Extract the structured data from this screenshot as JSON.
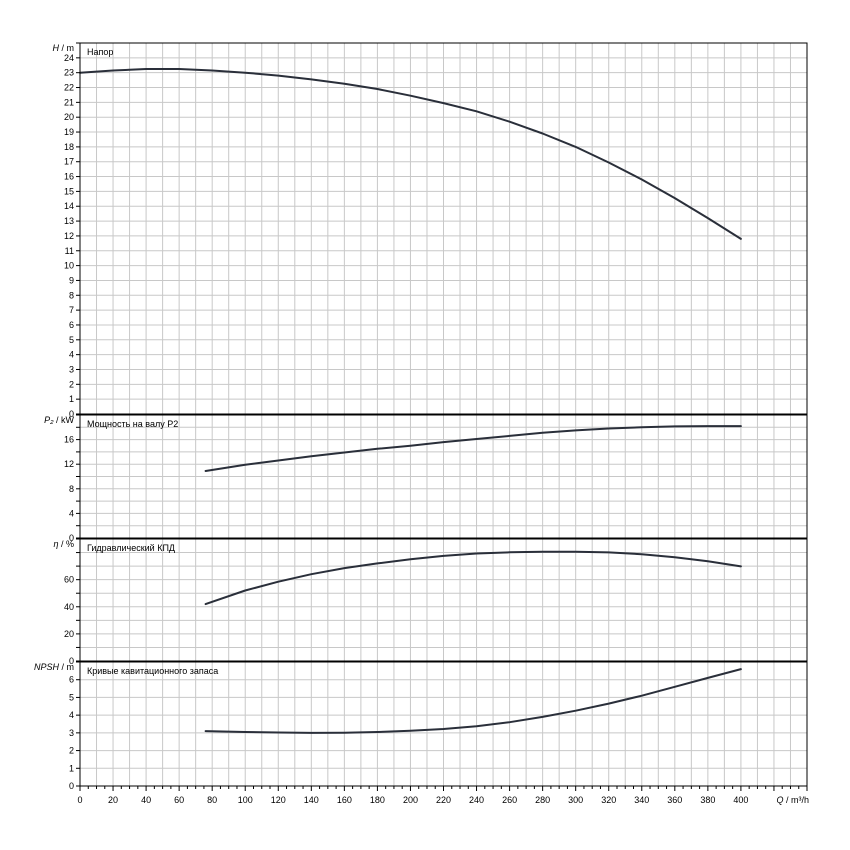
{
  "chart_data": {
    "type": "line",
    "x_axis": {
      "label": "Q / m³/h",
      "min": 0,
      "max": 440,
      "ticks": [
        0,
        20,
        40,
        60,
        80,
        100,
        120,
        140,
        160,
        180,
        200,
        220,
        240,
        260,
        280,
        300,
        320,
        340,
        360,
        380,
        400
      ]
    },
    "grid": true,
    "panels": [
      {
        "id": "head",
        "title": "Напор",
        "ylabel": "H / m",
        "ylim": [
          0,
          25
        ],
        "ticks": [
          0,
          1,
          2,
          3,
          4,
          5,
          6,
          7,
          8,
          9,
          10,
          11,
          12,
          13,
          14,
          15,
          16,
          17,
          18,
          19,
          20,
          21,
          22,
          23,
          24
        ],
        "gridlines": [
          0,
          1,
          2,
          3,
          4,
          5,
          6,
          7,
          8,
          9,
          10,
          11,
          12,
          13,
          14,
          15,
          16,
          17,
          18,
          19,
          20,
          21,
          22,
          23,
          24,
          25
        ],
        "series": [
          {
            "x": [
              0,
              20,
              40,
              60,
              80,
              100,
              120,
              140,
              160,
              180,
              200,
              220,
              240,
              260,
              280,
              300,
              320,
              340,
              360,
              380,
              400
            ],
            "y": [
              23.0,
              23.15,
              23.25,
              23.25,
              23.15,
              23.0,
              22.8,
              22.55,
              22.25,
              21.9,
              21.45,
              20.95,
              20.4,
              19.7,
              18.9,
              18.0,
              16.95,
              15.8,
              14.55,
              13.2,
              11.8
            ]
          }
        ]
      },
      {
        "id": "power",
        "title": "Мощность на валу P2",
        "ylabel": "P₂ / kW",
        "ylim": [
          0,
          20
        ],
        "ticks": [
          0,
          4,
          8,
          12,
          16
        ],
        "gridlines": [
          0,
          2,
          4,
          6,
          8,
          10,
          12,
          14,
          16,
          18,
          20
        ],
        "series": [
          {
            "x": [
              76,
              100,
              120,
              140,
              160,
              180,
              200,
              220,
              240,
              260,
              280,
              300,
              320,
              340,
              360,
              380,
              400
            ],
            "y": [
              10.9,
              11.9,
              12.6,
              13.3,
              13.9,
              14.5,
              15.0,
              15.6,
              16.1,
              16.6,
              17.1,
              17.5,
              17.8,
              18.0,
              18.15,
              18.2,
              18.2
            ]
          }
        ]
      },
      {
        "id": "efficiency",
        "title": "Гидравлический КПД",
        "ylabel": "η / %",
        "ylim": [
          0,
          90
        ],
        "ticks": [
          0,
          20,
          40,
          60
        ],
        "gridlines": [
          0,
          10,
          20,
          30,
          40,
          50,
          60,
          70,
          80,
          90
        ],
        "series": [
          {
            "x": [
              76,
              100,
              120,
              140,
              160,
              180,
              200,
              220,
              240,
              260,
              280,
              300,
              320,
              340,
              360,
              380,
              400
            ],
            "y": [
              42,
              52,
              58.5,
              64,
              68.5,
              72,
              75,
              77.5,
              79.3,
              80.2,
              80.6,
              80.6,
              80.1,
              78.8,
              76.6,
              73.6,
              69.8
            ]
          }
        ]
      },
      {
        "id": "npsh",
        "title": "Кривые кавитационного запаса",
        "ylabel": "NPSH / m",
        "ylim": [
          0,
          7
        ],
        "ticks": [
          0,
          1,
          2,
          3,
          4,
          5,
          6
        ],
        "gridlines": [
          0,
          1,
          2,
          3,
          4,
          5,
          6,
          7
        ],
        "series": [
          {
            "x": [
              76,
              100,
              120,
              140,
              160,
              180,
              200,
              220,
              240,
              260,
              280,
              300,
              320,
              340,
              360,
              380,
              400
            ],
            "y": [
              3.1,
              3.05,
              3.02,
              3.0,
              3.01,
              3.05,
              3.12,
              3.22,
              3.37,
              3.6,
              3.9,
              4.25,
              4.65,
              5.1,
              5.6,
              6.1,
              6.6
            ]
          }
        ]
      }
    ]
  }
}
